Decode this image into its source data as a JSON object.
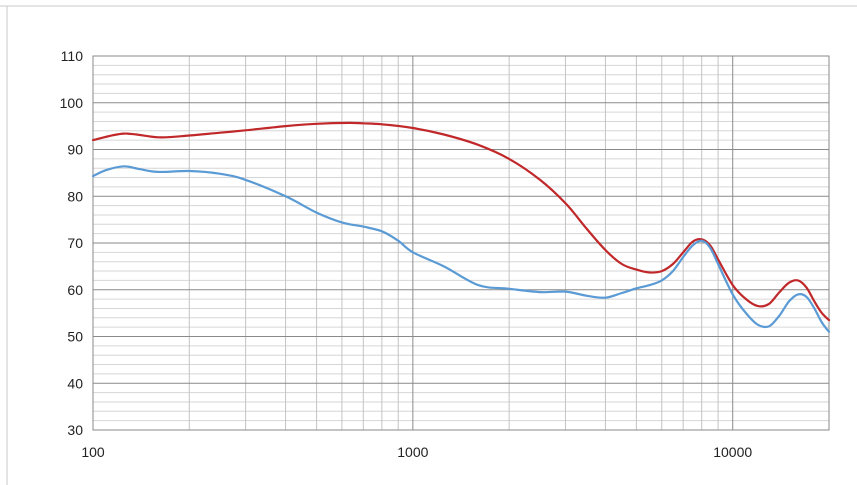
{
  "chart_data": {
    "type": "line",
    "x_scale": "log",
    "xlim": [
      100,
      20000
    ],
    "ylim": [
      30,
      110
    ],
    "x_tick_labels": [
      {
        "value": 100,
        "label": "100"
      },
      {
        "value": 1000,
        "label": "1000"
      },
      {
        "value": 10000,
        "label": "10000"
      }
    ],
    "y_ticks": [
      30,
      40,
      50,
      60,
      70,
      80,
      90,
      100,
      110
    ],
    "y_minor_step": 2,
    "grid": true,
    "legend": "none",
    "series": [
      {
        "color": "#c0282a",
        "points": [
          [
            100,
            92
          ],
          [
            125,
            93.4
          ],
          [
            160,
            92.6
          ],
          [
            200,
            93
          ],
          [
            250,
            93.6
          ],
          [
            300,
            94.1
          ],
          [
            400,
            95
          ],
          [
            500,
            95.5
          ],
          [
            630,
            95.7
          ],
          [
            700,
            95.6
          ],
          [
            800,
            95.4
          ],
          [
            1000,
            94.6
          ],
          [
            1250,
            93.2
          ],
          [
            1600,
            91
          ],
          [
            2000,
            88
          ],
          [
            2500,
            83.5
          ],
          [
            3000,
            78.5
          ],
          [
            3500,
            73
          ],
          [
            4000,
            68.5
          ],
          [
            4500,
            65.5
          ],
          [
            5000,
            64.3
          ],
          [
            5500,
            63.7
          ],
          [
            6000,
            64
          ],
          [
            6500,
            65.5
          ],
          [
            7000,
            68
          ],
          [
            7500,
            70.3
          ],
          [
            8000,
            70.8
          ],
          [
            8500,
            69.5
          ],
          [
            9000,
            66.5
          ],
          [
            10000,
            61
          ],
          [
            11000,
            58
          ],
          [
            12000,
            56.5
          ],
          [
            13000,
            57
          ],
          [
            14000,
            59.5
          ],
          [
            15000,
            61.5
          ],
          [
            16000,
            62
          ],
          [
            17000,
            60.5
          ],
          [
            18000,
            57.5
          ],
          [
            19000,
            55
          ],
          [
            20000,
            53.5
          ]
        ]
      },
      {
        "color": "#5b9bd5",
        "points": [
          [
            100,
            84.3
          ],
          [
            110,
            85.6
          ],
          [
            125,
            86.4
          ],
          [
            140,
            85.8
          ],
          [
            160,
            85.2
          ],
          [
            200,
            85.4
          ],
          [
            250,
            84.8
          ],
          [
            300,
            83.5
          ],
          [
            400,
            80
          ],
          [
            500,
            76.5
          ],
          [
            600,
            74.4
          ],
          [
            700,
            73.5
          ],
          [
            800,
            72.5
          ],
          [
            900,
            70.5
          ],
          [
            1000,
            68
          ],
          [
            1250,
            65
          ],
          [
            1600,
            61
          ],
          [
            2000,
            60.2
          ],
          [
            2500,
            59.5
          ],
          [
            3000,
            59.6
          ],
          [
            3500,
            58.7
          ],
          [
            4000,
            58.3
          ],
          [
            4500,
            59.3
          ],
          [
            5000,
            60.3
          ],
          [
            5500,
            61
          ],
          [
            6000,
            62
          ],
          [
            6500,
            64
          ],
          [
            7000,
            67
          ],
          [
            7500,
            69.5
          ],
          [
            8000,
            70.5
          ],
          [
            8500,
            69
          ],
          [
            9000,
            65.5
          ],
          [
            10000,
            59
          ],
          [
            11000,
            55
          ],
          [
            12000,
            52.5
          ],
          [
            13000,
            52.2
          ],
          [
            14000,
            54.5
          ],
          [
            15000,
            57.5
          ],
          [
            16000,
            59
          ],
          [
            17000,
            58.5
          ],
          [
            18000,
            56
          ],
          [
            19000,
            53
          ],
          [
            20000,
            51
          ]
        ]
      }
    ]
  }
}
